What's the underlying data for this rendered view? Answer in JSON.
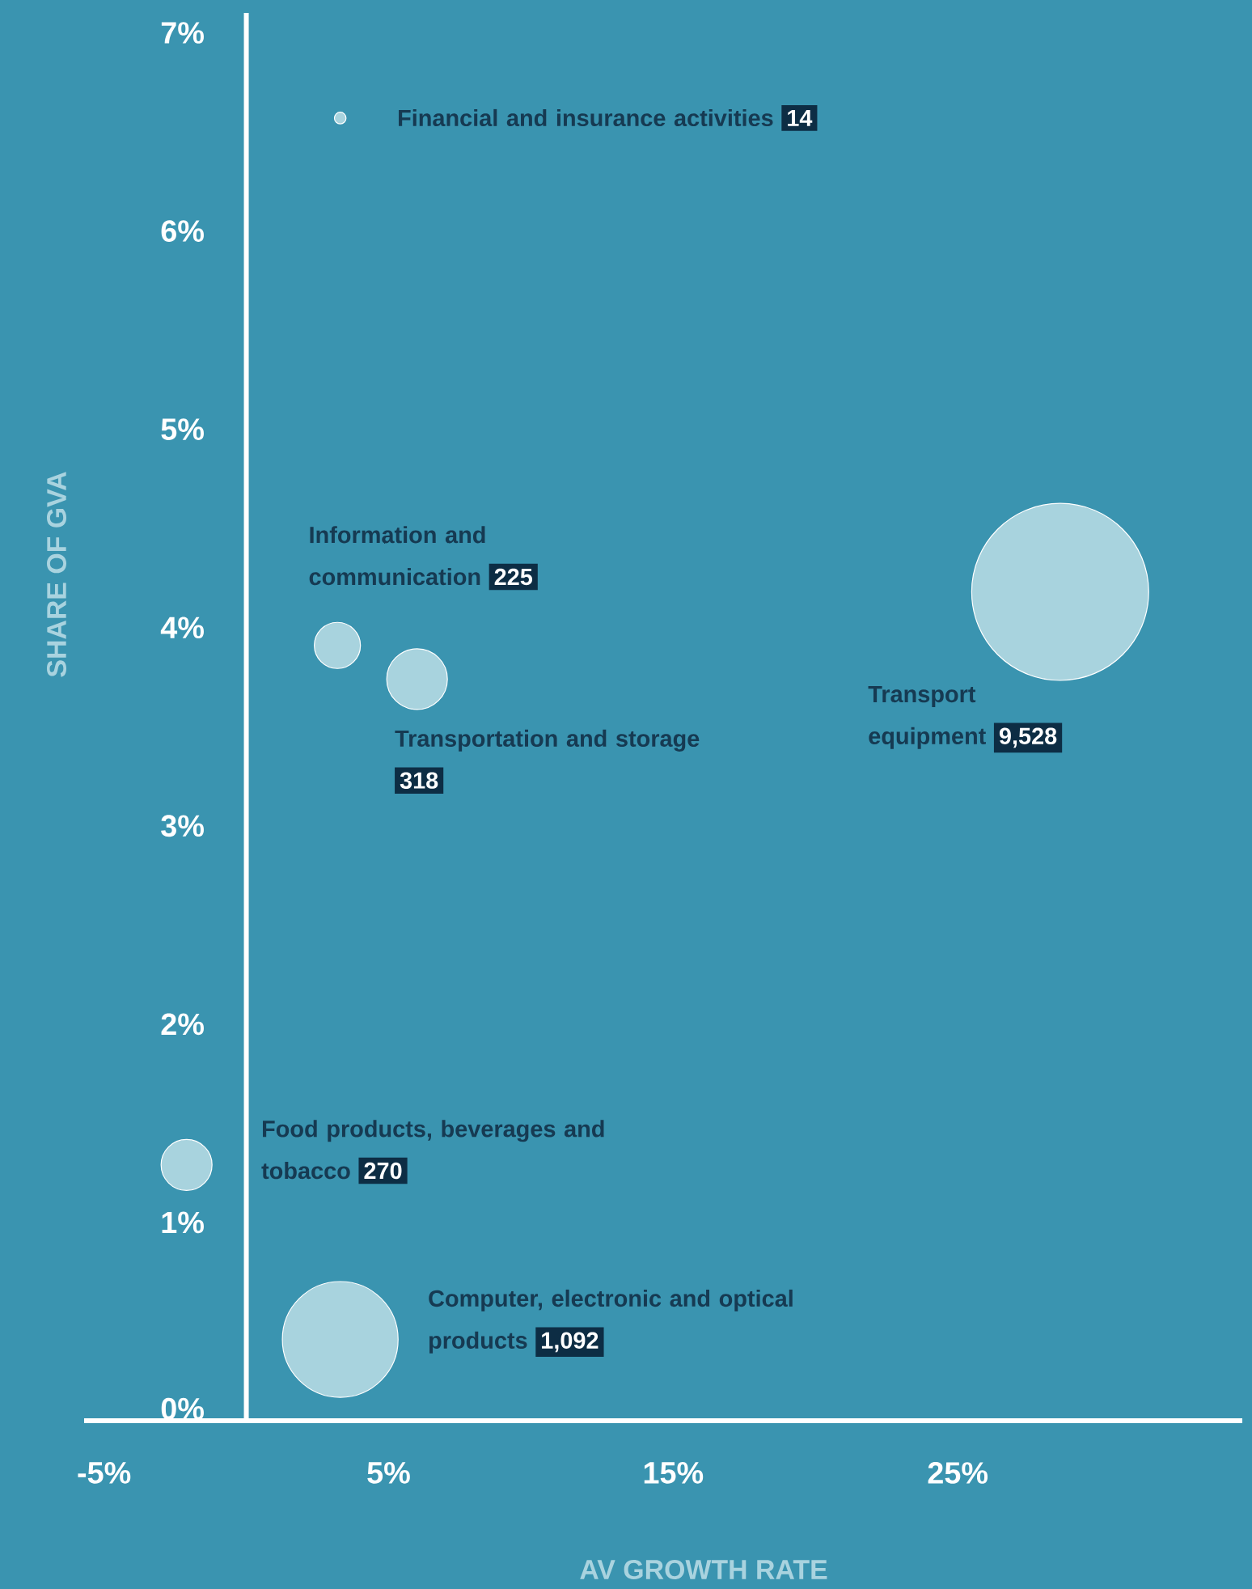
{
  "chart_data": {
    "type": "bubble",
    "xlabel": "AV GROWTH RATE",
    "ylabel": "SHARE OF GVA",
    "xlim": [
      -5.7,
      35
    ],
    "ylim": [
      0,
      7.1
    ],
    "xticks": [
      {
        "value": -5,
        "label": "-5%"
      },
      {
        "value": 5,
        "label": "5%"
      },
      {
        "value": 15,
        "label": "15%"
      },
      {
        "value": 25,
        "label": "25%"
      }
    ],
    "yticks": [
      {
        "value": 0,
        "label": "0%"
      },
      {
        "value": 1,
        "label": "1%"
      },
      {
        "value": 2,
        "label": "2%"
      },
      {
        "value": 3,
        "label": "3%"
      },
      {
        "value": 4,
        "label": "4%"
      },
      {
        "value": 5,
        "label": "5%"
      },
      {
        "value": 6,
        "label": "6%"
      },
      {
        "value": 7,
        "label": "7%"
      }
    ],
    "grid": false,
    "series": [
      {
        "name": "Financial and insurance activities",
        "color": "#a8d3de",
        "x": [
          3.3
        ],
        "values": [
          6.57
        ],
        "sizes": [
          0.005
        ]
      },
      {
        "name": "Information and communication",
        "color": "#a8d3de",
        "x": [
          3.2
        ],
        "values": [
          3.91
        ],
        "sizes": [
          0.07
        ]
      },
      {
        "name": "Transportation and storage",
        "color": "#a8d3de",
        "x": [
          6.0
        ],
        "values": [
          3.74
        ],
        "sizes": [
          0.12
        ]
      },
      {
        "name": "Transport equipment",
        "color": "#a8d3de",
        "x": [
          28.6
        ],
        "values": [
          4.18
        ],
        "sizes": [
          1
        ]
      },
      {
        "name": "Food products, beverages and tobacco",
        "color": "#a8d3de",
        "x": [
          -2.1
        ],
        "values": [
          1.29
        ],
        "sizes": [
          0.085
        ]
      },
      {
        "name": "Computer, electronic and optical products",
        "color": "#a8d3de",
        "x": [
          3.3
        ],
        "values": [
          0.41
        ],
        "sizes": [
          0.43
        ]
      }
    ],
    "annotations": [
      "14",
      "225",
      "318",
      "9,528",
      "270",
      "1,092"
    ]
  }
}
